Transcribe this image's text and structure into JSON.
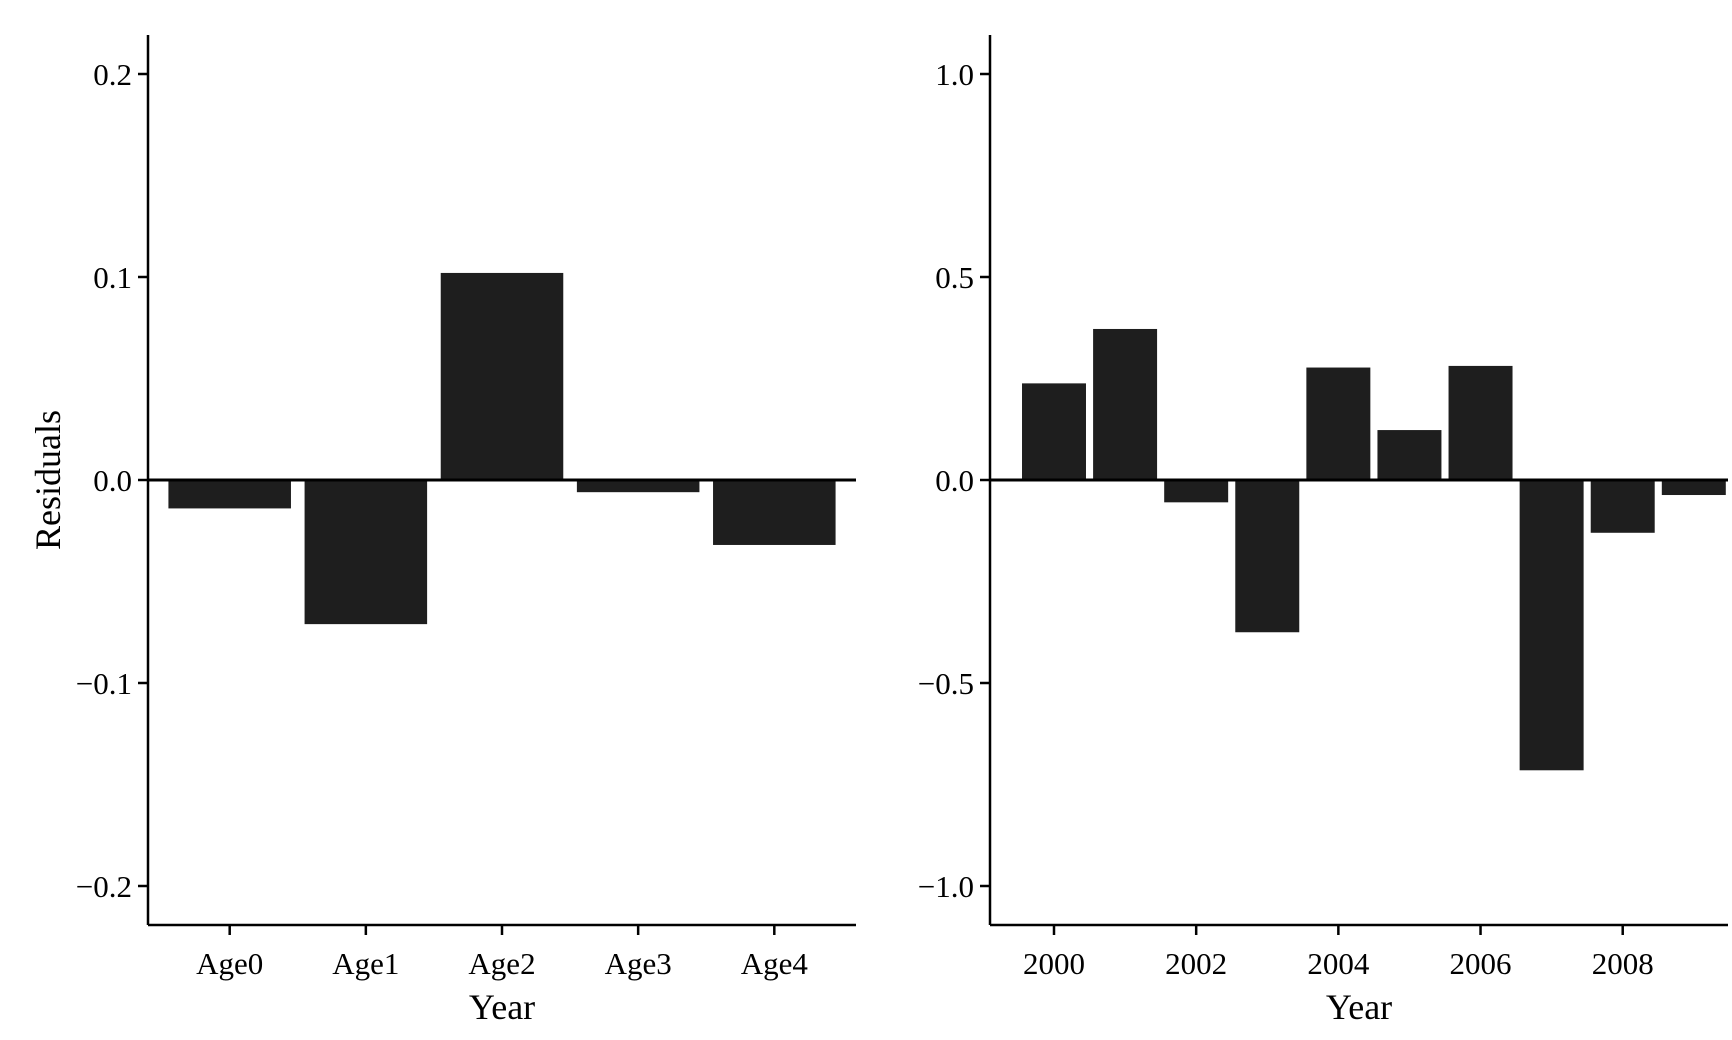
{
  "colors": {
    "bar_fill": "#1e1e1e",
    "axis": "#000000",
    "background": "#ffffff"
  },
  "chart_data": [
    {
      "type": "bar",
      "title": "",
      "xlabel": "Year",
      "ylabel": "Residuals",
      "ylim": [
        -0.22,
        0.22
      ],
      "yticks": [
        -0.2,
        -0.1,
        0.0,
        0.1,
        0.2
      ],
      "ytick_labels": [
        "−0.2",
        "−0.1",
        "0.0",
        "0.1",
        "0.2"
      ],
      "categories": [
        "Age0",
        "Age1",
        "Age2",
        "Age3",
        "Age4"
      ],
      "values": [
        -0.014,
        -0.071,
        0.102,
        -0.006,
        -0.032
      ],
      "grid": false,
      "legend": "none"
    },
    {
      "type": "bar",
      "title": "",
      "xlabel": "Year",
      "ylabel": "",
      "ylim": [
        -1.1,
        1.1
      ],
      "yticks": [
        -1.0,
        -0.5,
        0.0,
        0.5,
        1.0
      ],
      "ytick_labels": [
        "−1.0",
        "−0.5",
        "0.0",
        "0.5",
        "1.0"
      ],
      "x": [
        2000,
        2001,
        2002,
        2003,
        2004,
        2005,
        2006,
        2007,
        2008,
        2009
      ],
      "xticks": [
        2000,
        2002,
        2004,
        2006,
        2008
      ],
      "xtick_labels": [
        "2000",
        "2002",
        "2004",
        "2006",
        "2008"
      ],
      "values": [
        0.238,
        0.372,
        -0.055,
        -0.375,
        0.277,
        0.123,
        0.281,
        -0.715,
        -0.13,
        -0.037
      ],
      "grid": false,
      "legend": "none"
    }
  ]
}
